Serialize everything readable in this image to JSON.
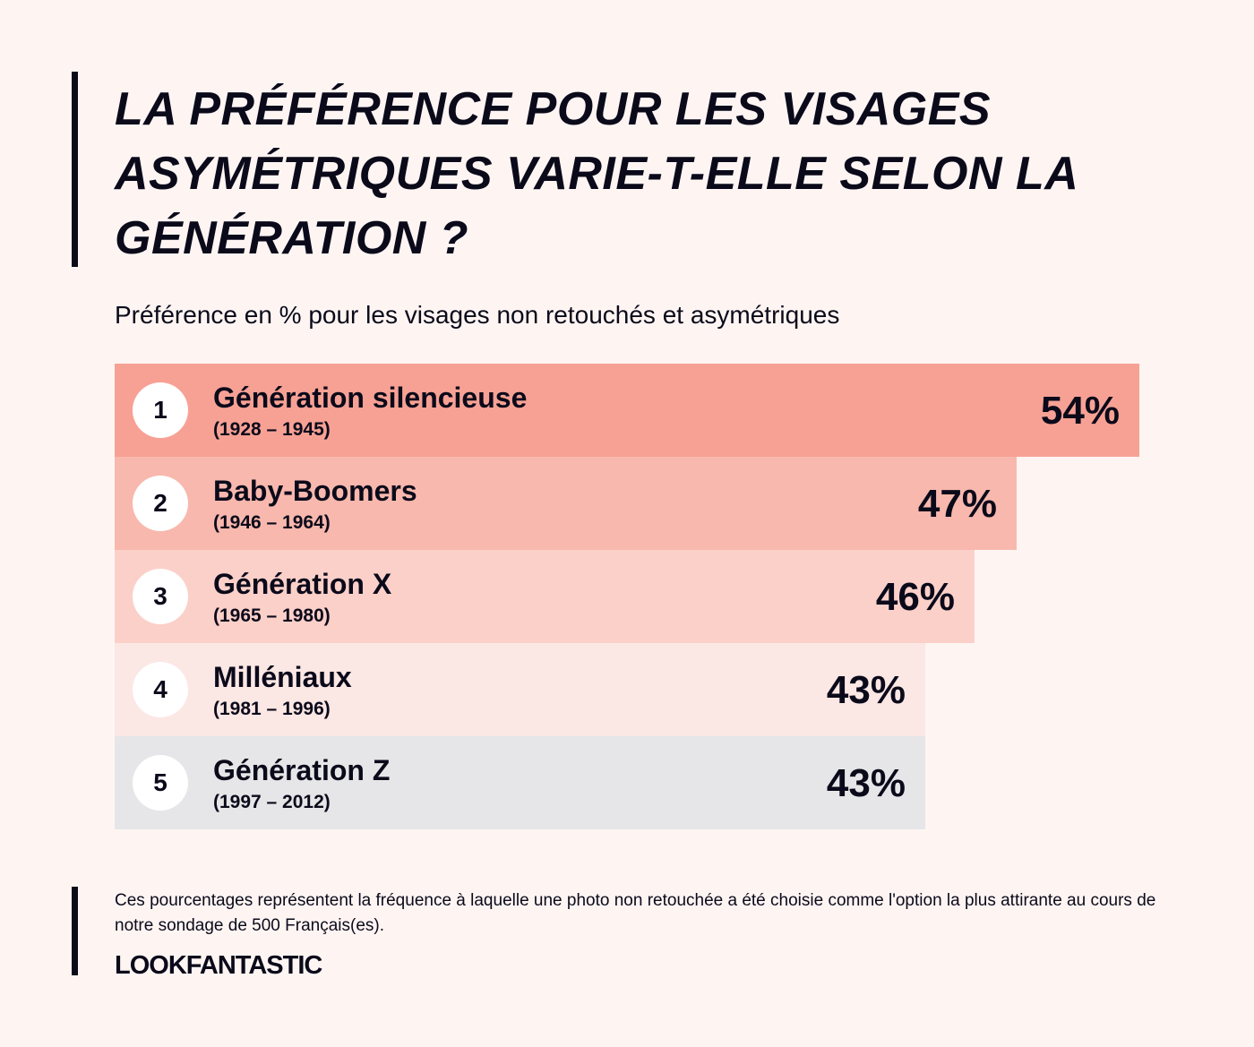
{
  "title": "La préférence pour les visages asymétriques varie-t-elle selon la génération ?",
  "subtitle": "Préférence en % pour les visages non retouchés et asymétriques",
  "chart_data": {
    "type": "bar",
    "orientation": "horizontal",
    "categories": [
      "Génération silencieuse",
      "Baby-Boomers",
      "Génération X",
      "Milléniaux",
      "Génération Z"
    ],
    "ranks": [
      "1",
      "2",
      "3",
      "4",
      "5"
    ],
    "years": [
      "(1928 – 1945)",
      "(1946 – 1964)",
      "(1965 – 1980)",
      "(1981 – 1996)",
      "(1997 – 2012)"
    ],
    "values": [
      54,
      47,
      46,
      43,
      43
    ],
    "value_labels": [
      "54%",
      "47%",
      "46%",
      "43%",
      "43%"
    ],
    "colors": [
      "#f7a194",
      "#f8b8ad",
      "#fbd0c9",
      "#fbe7e4",
      "#e6e6e8"
    ],
    "xlim": [
      0,
      54
    ],
    "grid": false
  },
  "footnote": "Ces pourcentages représentent la fréquence à laquelle une photo non retouchée a été choisie comme l'option la plus attirante au cours de notre sondage de 500 Français(es).",
  "brand": "LOOKFANTASTIC"
}
